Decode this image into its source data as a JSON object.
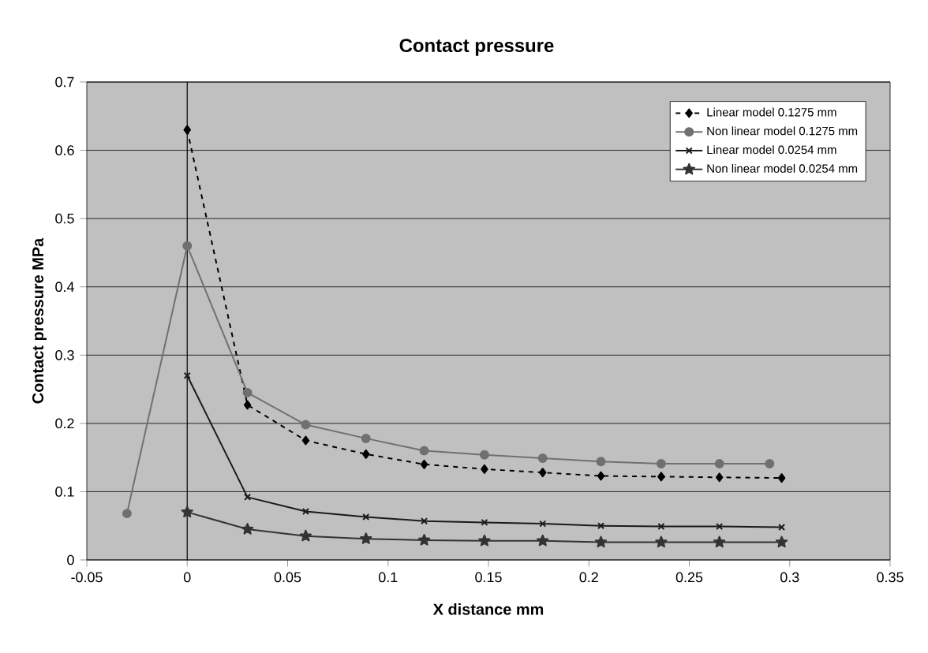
{
  "chart_data": {
    "type": "line",
    "title": "Contact pressure",
    "xlabel": "X distance mm",
    "ylabel": "Contact pressure MPa",
    "xlim": [
      -0.05,
      0.35
    ],
    "xticks": [
      -0.05,
      0,
      0.05,
      0.1,
      0.15,
      0.2,
      0.25,
      0.3,
      0.35
    ],
    "ylim": [
      0,
      0.7
    ],
    "yticks": [
      0,
      0.1,
      0.2,
      0.3,
      0.4,
      0.5,
      0.6,
      0.7
    ],
    "grid": "y",
    "legend": "top right",
    "ref_lines": [
      {
        "axis": "x",
        "value": 0,
        "color": "#000000"
      }
    ],
    "series": [
      {
        "name": "Linear model 0.1275 mm",
        "color": "#000000",
        "marker": "diamond",
        "line_style": "dashed",
        "x": [
          0,
          0.03,
          0.059,
          0.089,
          0.118,
          0.148,
          0.177,
          0.206,
          0.236,
          0.265,
          0.296
        ],
        "values": [
          0.63,
          0.227,
          0.175,
          0.155,
          0.14,
          0.133,
          0.128,
          0.123,
          0.122,
          0.121,
          0.12
        ]
      },
      {
        "name": "Non linear model 0.1275 mm",
        "color": "#707070",
        "marker": "circle",
        "line_style": "solid",
        "x": [
          -0.03,
          0,
          0.03,
          0.059,
          0.089,
          0.118,
          0.148,
          0.177,
          0.206,
          0.236,
          0.265,
          0.29
        ],
        "values": [
          0.068,
          0.46,
          0.245,
          0.198,
          0.178,
          0.16,
          0.154,
          0.149,
          0.144,
          0.141,
          0.141,
          0.141
        ]
      },
      {
        "name": "Linear model 0.0254 mm",
        "color": "#1a1a1a",
        "marker": "cross",
        "line_style": "solid",
        "x": [
          0,
          0.03,
          0.059,
          0.089,
          0.118,
          0.148,
          0.177,
          0.206,
          0.236,
          0.265,
          0.296
        ],
        "values": [
          0.27,
          0.092,
          0.071,
          0.063,
          0.057,
          0.055,
          0.053,
          0.05,
          0.049,
          0.049,
          0.048
        ]
      },
      {
        "name": "Non linear model 0.0254 mm",
        "color": "#333333",
        "marker": "star",
        "line_style": "solid",
        "x": [
          0,
          0.03,
          0.059,
          0.089,
          0.118,
          0.148,
          0.177,
          0.206,
          0.236,
          0.265,
          0.296
        ],
        "values": [
          0.07,
          0.045,
          0.035,
          0.031,
          0.029,
          0.028,
          0.028,
          0.026,
          0.026,
          0.026,
          0.026
        ]
      }
    ]
  }
}
